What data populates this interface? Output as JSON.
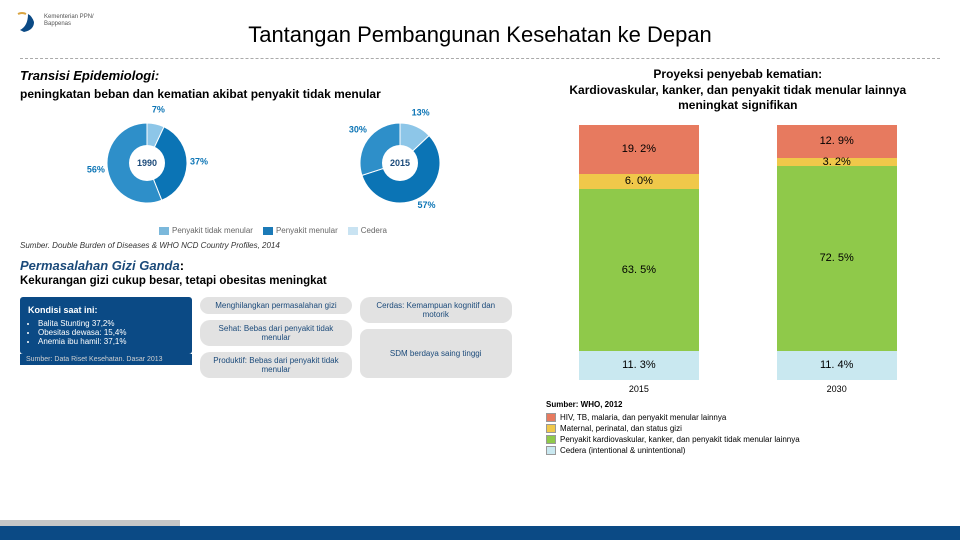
{
  "title": "Tantangan Pembangunan Kesehatan ke Depan",
  "logo": {
    "line1": "Kementerian PPN/",
    "line2": "Bappenas"
  },
  "left": {
    "heading": "Transisi Epidemiologi:",
    "sub": "peningkatan beban dan kematian akibat penyakit tidak menular",
    "pies": {
      "y1": {
        "year": "1990",
        "slices": [
          {
            "label": "7%",
            "value": 7,
            "color": "#8dc6e8"
          },
          {
            "label": "37%",
            "value": 37,
            "color": "#0b74b5"
          },
          {
            "label": "56%",
            "value": 56,
            "color": "#2e8fc9"
          }
        ]
      },
      "y2": {
        "year": "2015",
        "slices": [
          {
            "label": "13%",
            "value": 13,
            "color": "#8dc6e8"
          },
          {
            "label": "57%",
            "value": 57,
            "color": "#0b74b5"
          },
          {
            "label": "30%",
            "value": 30,
            "color": "#2e8fc9"
          }
        ]
      },
      "legend": [
        {
          "label": "Penyakit tidak menular",
          "color": "#7bb8db"
        },
        {
          "label": "Penyakit menular",
          "color": "#1b7ab7"
        },
        {
          "label": "Cedera",
          "color": "#c9e3f2"
        }
      ]
    },
    "source": "Sumber. Double Burden of Diseases & WHO NCD Country Profiles, 2014",
    "gizi_head": "Permasalahan Gizi Ganda",
    "gizi_desc": "Kekurangan gizi cukup besar, tetapi obesitas meningkat",
    "infographic": {
      "box_title": "Kondisi saat ini:",
      "bullets": [
        "Balita Stunting 37,2%",
        "Obesitas dewasa: 15,4%",
        "Anemia ibu hamil: 37,1%"
      ],
      "box_src": "Sumber: Data Riset Kesehatan. Dasar 2013",
      "mid_label": "Menghilangkan permasalahan gizi",
      "cerdas": "Cerdas: Kemampuan kognitif dan motorik",
      "sehat": "Sehat: Bebas dari penyakit tidak menular",
      "produktif": "Produktif: Bebas dari penyakit tidak menular",
      "sdm": "SDM berdaya saing tinggi"
    }
  },
  "right": {
    "title_l1": "Proyeksi penyebab kematian:",
    "title_l2": "Kardiovaskular, kanker, dan penyakit tidak menular lainnya meningkat signifikan",
    "bars": [
      {
        "year": "2015",
        "segments": [
          {
            "v": 11.3,
            "label": "11. 3%",
            "color": "#c9e8f0"
          },
          {
            "v": 63.5,
            "label": "63. 5%",
            "color": "#8fc94a"
          },
          {
            "v": 6.0,
            "label": "6. 0%",
            "color": "#f0c84a"
          },
          {
            "v": 19.2,
            "label": "19. 2%",
            "color": "#e77a5f"
          }
        ]
      },
      {
        "year": "2030",
        "segments": [
          {
            "v": 11.4,
            "label": "11. 4%",
            "color": "#c9e8f0"
          },
          {
            "v": 72.5,
            "label": "72. 5%",
            "color": "#8fc94a"
          },
          {
            "v": 3.2,
            "label": "3. 2%",
            "color": "#f0c84a"
          },
          {
            "v": 12.9,
            "label": "12. 9%",
            "color": "#e77a5f"
          }
        ]
      }
    ],
    "source": "Sumber: WHO, 2012",
    "legend": [
      {
        "color": "#e77a5f",
        "label": "HIV, TB, malaria, dan penyakit menular lainnya"
      },
      {
        "color": "#f0c84a",
        "label": "Maternal, perinatal, dan status gizi"
      },
      {
        "color": "#8fc94a",
        "label": "Penyakit kardiovaskular, kanker, dan penyakit tidak menular lainnya"
      },
      {
        "color": "#c9e8f0",
        "label": "Cedera (intentional & unintentional)"
      }
    ]
  }
}
